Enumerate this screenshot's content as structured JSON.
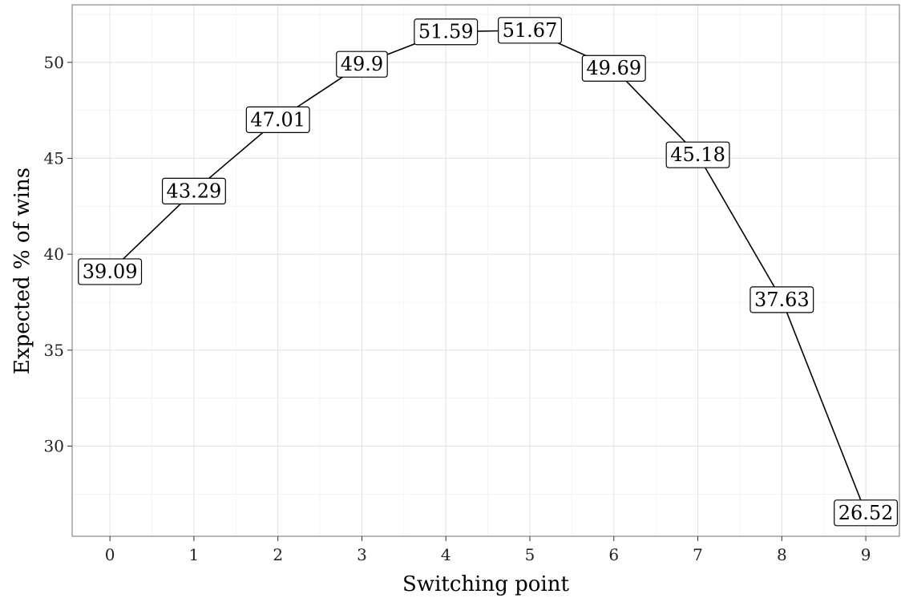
{
  "chart_data": {
    "type": "line",
    "title": "",
    "xlabel": "Switching point",
    "ylabel": "Expected % of wins",
    "x": [
      0,
      1,
      2,
      3,
      4,
      5,
      6,
      7,
      8,
      9
    ],
    "xlim": [
      -0.45,
      9.4
    ],
    "ylim": [
      25.3,
      53.0
    ],
    "x_ticks": [
      0,
      1,
      2,
      3,
      4,
      5,
      6,
      7,
      8,
      9
    ],
    "y_ticks": [
      30,
      35,
      40,
      45,
      50
    ],
    "grid": true,
    "series": [
      {
        "values": [
          39.09,
          43.29,
          47.01,
          49.9,
          51.59,
          51.67,
          49.69,
          45.18,
          37.63,
          26.52
        ],
        "labels": [
          "39.09",
          "43.29",
          "47.01",
          "49.9",
          "51.59",
          "51.67",
          "49.69",
          "45.18",
          "37.63",
          "26.52"
        ]
      }
    ],
    "colors": {
      "line": "#000000",
      "grid": "#e3e3e3",
      "background": "#ffffff"
    }
  }
}
